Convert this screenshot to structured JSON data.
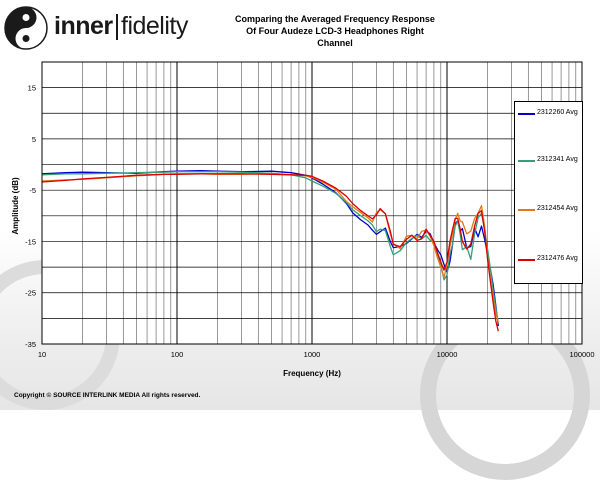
{
  "brand": {
    "inner": "inner",
    "fidelity": "fidelity"
  },
  "copyright": "Copyright © SOURCE INTERLINK MEDIA All rights reserved.",
  "chart_data": {
    "type": "line",
    "title_lines": [
      "Comparing the Averaged Frequency Response",
      "Of Four Audeze LCD-3 Headphones Right",
      "Channel"
    ],
    "xlabel": "Frequency (Hz)",
    "ylabel": "Amplitude (dB)",
    "x_scale": "log",
    "xlim": [
      10,
      100000
    ],
    "ylim": [
      -35,
      20
    ],
    "x_ticks": [
      10,
      100,
      1000,
      10000,
      100000
    ],
    "x_tick_labels": [
      "10",
      "100",
      "1000",
      "10000",
      "100000"
    ],
    "y_ticks": [
      15,
      5,
      -5,
      -15,
      -25,
      -35
    ],
    "y_tick_labels": [
      "15",
      "5",
      "-5",
      "-15",
      "-25",
      "-35"
    ],
    "grid": true,
    "legend_position": "right",
    "series": [
      {
        "name": "2312260 Avg",
        "color": "#0000cc",
        "x": [
          10,
          15,
          20,
          30,
          50,
          80,
          100,
          150,
          200,
          300,
          500,
          700,
          900,
          1000,
          1200,
          1500,
          1800,
          2000,
          2300,
          2600,
          2800,
          3000,
          3200,
          3500,
          3800,
          4000,
          4500,
          5000,
          5500,
          6000,
          6500,
          7000,
          7500,
          8000,
          8500,
          9000,
          9500,
          10000,
          10500,
          11000,
          11500,
          12000,
          12500,
          13000,
          14000,
          15000,
          16000,
          17000,
          18000,
          19000,
          20000,
          21000,
          22000,
          23000,
          24000
        ],
        "y": [
          -1.8,
          -1.6,
          -1.5,
          -1.6,
          -1.7,
          -1.4,
          -1.3,
          -1.2,
          -1.3,
          -1.4,
          -1.3,
          -1.6,
          -2.1,
          -2.6,
          -3.8,
          -5.5,
          -7.6,
          -9.4,
          -10.8,
          -11.8,
          -12.8,
          -13.6,
          -13.1,
          -12.4,
          -15.0,
          -16.2,
          -16.0,
          -15.4,
          -14.5,
          -13.6,
          -14.2,
          -13.0,
          -13.5,
          -15.2,
          -16.6,
          -17.6,
          -19.5,
          -21.0,
          -19.0,
          -15.5,
          -11.5,
          -11.0,
          -13.0,
          -12.5,
          -16.2,
          -16.0,
          -12.4,
          -14.1,
          -12.0,
          -14.6,
          -17.5,
          -20.5,
          -23.5,
          -27.5,
          -31.5
        ]
      },
      {
        "name": "2312341 Avg",
        "color": "#33a07a",
        "x": [
          10,
          15,
          20,
          30,
          50,
          80,
          100,
          150,
          200,
          300,
          500,
          700,
          900,
          1000,
          1200,
          1500,
          1800,
          2000,
          2300,
          2600,
          2800,
          3000,
          3200,
          3500,
          3800,
          4000,
          4500,
          5000,
          5500,
          6000,
          6500,
          7000,
          7500,
          8000,
          8500,
          9000,
          9500,
          10000,
          10500,
          11000,
          11500,
          12000,
          12500,
          13000,
          14000,
          15000,
          16000,
          17000,
          18000,
          19000,
          20000,
          21000,
          22000,
          23000,
          24000
        ],
        "y": [
          -2.0,
          -1.8,
          -1.8,
          -1.7,
          -1.6,
          -1.5,
          -1.4,
          -1.4,
          -1.4,
          -1.5,
          -1.7,
          -2.0,
          -2.6,
          -3.2,
          -4.2,
          -5.6,
          -7.4,
          -8.8,
          -10.0,
          -11.0,
          -11.8,
          -13.1,
          -12.6,
          -12.9,
          -16.0,
          -17.6,
          -16.8,
          -15.2,
          -14.4,
          -13.8,
          -14.5,
          -13.8,
          -14.8,
          -15.0,
          -17.6,
          -19.5,
          -22.5,
          -21.5,
          -17.5,
          -15.5,
          -12.0,
          -11.0,
          -13.5,
          -16.6,
          -16.0,
          -18.5,
          -13.5,
          -10.4,
          -9.5,
          -12.5,
          -16.5,
          -20.5,
          -24.5,
          -28.0,
          -31.0
        ]
      },
      {
        "name": "2312454 Avg",
        "color": "#e07a18",
        "x": [
          10,
          15,
          20,
          30,
          50,
          80,
          100,
          150,
          200,
          300,
          500,
          700,
          900,
          1000,
          1200,
          1500,
          1800,
          2000,
          2300,
          2600,
          2800,
          3000,
          3200,
          3500,
          3800,
          4000,
          4500,
          5000,
          5500,
          6000,
          6500,
          7000,
          7500,
          8000,
          8500,
          9000,
          9500,
          10000,
          10500,
          11000,
          11500,
          12000,
          12500,
          13000,
          14000,
          15000,
          16000,
          17000,
          18000,
          19000,
          20000,
          21000,
          22000,
          23000,
          24000
        ],
        "y": [
          -3.2,
          -3.0,
          -2.9,
          -2.6,
          -2.2,
          -1.9,
          -1.8,
          -1.8,
          -1.9,
          -1.9,
          -1.8,
          -2.0,
          -2.2,
          -2.5,
          -3.4,
          -4.8,
          -7.2,
          -8.2,
          -9.4,
          -10.4,
          -11.2,
          -9.4,
          -8.8,
          -9.6,
          -13.5,
          -15.4,
          -16.4,
          -14.0,
          -13.8,
          -14.5,
          -13.0,
          -12.8,
          -14.0,
          -15.8,
          -18.2,
          -20.0,
          -22.0,
          -19.5,
          -16.0,
          -13.5,
          -10.8,
          -9.5,
          -11.0,
          -11.2,
          -13.5,
          -13.0,
          -10.5,
          -9.5,
          -8.0,
          -12.0,
          -18.0,
          -22.5,
          -26.0,
          -29.0,
          -30.8
        ]
      },
      {
        "name": "2312476 Avg",
        "color": "#dd0000",
        "x": [
          10,
          15,
          20,
          30,
          50,
          80,
          100,
          150,
          200,
          300,
          500,
          700,
          900,
          1000,
          1200,
          1500,
          1800,
          2000,
          2300,
          2600,
          2800,
          3000,
          3200,
          3500,
          3800,
          4000,
          4500,
          5000,
          5500,
          6000,
          6500,
          7000,
          7500,
          8000,
          8500,
          9000,
          9500,
          10000,
          10500,
          11000,
          11500,
          12000,
          12500,
          13000,
          14000,
          15000,
          16000,
          17000,
          18000,
          19000,
          20000,
          21000,
          22000,
          23000,
          24000
        ],
        "y": [
          -3.4,
          -3.1,
          -2.8,
          -2.5,
          -2.1,
          -1.9,
          -1.9,
          -1.8,
          -1.8,
          -1.8,
          -1.9,
          -2.0,
          -2.1,
          -2.3,
          -3.2,
          -4.6,
          -6.2,
          -7.6,
          -9.0,
          -10.0,
          -10.6,
          -9.8,
          -8.6,
          -9.6,
          -13.0,
          -15.6,
          -16.0,
          -14.6,
          -13.8,
          -14.8,
          -14.5,
          -12.6,
          -13.8,
          -15.0,
          -17.2,
          -19.0,
          -20.6,
          -19.0,
          -15.0,
          -12.6,
          -10.5,
          -10.5,
          -12.5,
          -15.0,
          -16.5,
          -15.5,
          -12.0,
          -9.5,
          -9.0,
          -13.0,
          -18.5,
          -23.0,
          -27.0,
          -30.5,
          -32.5
        ]
      }
    ]
  }
}
